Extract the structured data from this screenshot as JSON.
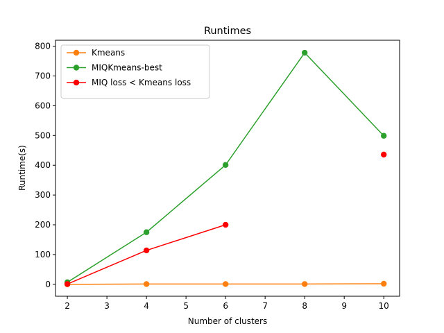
{
  "chart_data": {
    "type": "line",
    "title": "Runtimes",
    "xlabel": "Number of clusters",
    "ylabel": "Runtime(s)",
    "xlim": [
      1.7,
      10.4
    ],
    "ylim": [
      -40,
      820
    ],
    "xticks": [
      2,
      3,
      4,
      5,
      6,
      7,
      8,
      9,
      10
    ],
    "yticks": [
      0,
      100,
      200,
      300,
      400,
      500,
      600,
      700,
      800
    ],
    "grid": false,
    "legend_position": "top-left",
    "series": [
      {
        "name": "Kmeans",
        "color": "#ff7f0e",
        "points": [
          [
            2,
            0
          ],
          [
            4,
            1
          ],
          [
            6,
            1
          ],
          [
            8,
            1
          ],
          [
            10,
            2
          ]
        ]
      },
      {
        "name": "MIQKmeans-best",
        "color": "#2ca02c",
        "points": [
          [
            2,
            7
          ],
          [
            4,
            175
          ],
          [
            6,
            401
          ],
          [
            8,
            778
          ],
          [
            10,
            499
          ]
        ]
      },
      {
        "name": "MIQ loss < Kmeans loss",
        "color": "#ff0000",
        "segments": [
          [
            [
              2,
              1
            ],
            [
              4,
              114
            ],
            [
              6,
              200
            ]
          ],
          [
            [
              10,
              436
            ]
          ]
        ]
      }
    ]
  }
}
